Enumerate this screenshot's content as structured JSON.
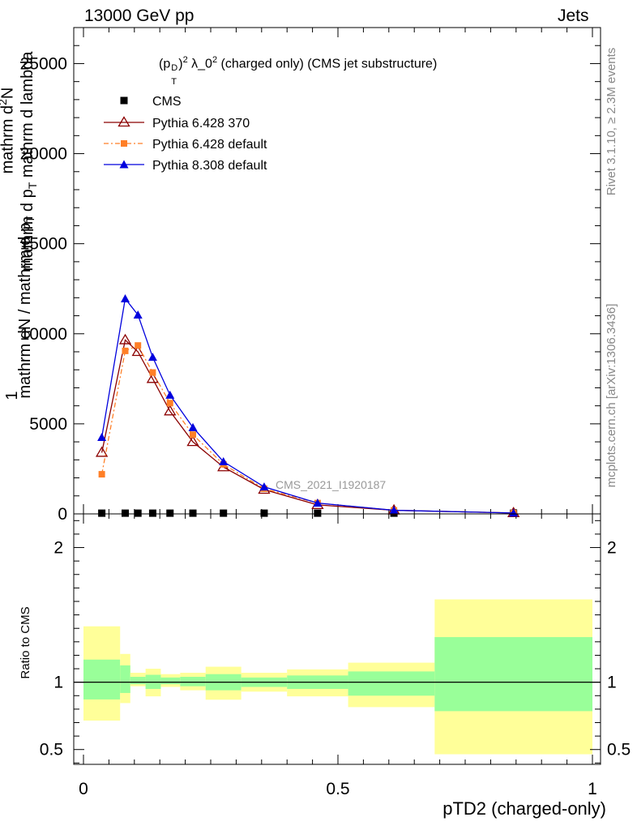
{
  "header": {
    "energy": "13000 GeV pp",
    "process": "Jets"
  },
  "side_labels": {
    "rivet": "Rivet 3.1.10, ≥ 2.3M events",
    "mcplots": "mcplots.cern.ch [arXiv:1306.3436]"
  },
  "colors": {
    "cms": "#000000",
    "pythia6_370": "#8b0000",
    "pythia6_default": "#ff7f27",
    "pythia8": "#0000dd",
    "band_outer": "#ffff99",
    "band_inner": "#99ff99"
  },
  "chart_data": [
    {
      "type": "line",
      "panel": "main",
      "title": "(p_T^D)^2 λ_0^2 (charged only) (CMS jet substructure)",
      "title_parts": {
        "p": "(p",
        "sub": "T",
        "sup_d": "D",
        "close": ")",
        "sup2": "2",
        "lam": " λ_0",
        "sup2b": "2",
        "rest": " (charged only) (CMS jet substructure)"
      },
      "ylabel": "1 / mathrm dN / mathrm d p_T mathrm d p_T mathrm d lambda mathrm d²N",
      "ylabel_parts": {
        "one": "1",
        "denominator": "mathrm dN / mathrm d p",
        "denominator_sub": "T",
        "numerator_line1": "mathrm d p",
        "numerator_line1_sub": "T",
        "numerator_line1_rest": " mathrm d lambda",
        "numerator_line2": "mathrm d",
        "numerator_line2_sup": "2",
        "numerator_line2_rest": "N"
      },
      "ylim": [
        0,
        27000
      ],
      "xlim": [
        0,
        1
      ],
      "y_ticks": [
        0,
        5000,
        10000,
        15000,
        20000,
        25000
      ],
      "y_tick_labels": [
        "0",
        "5000",
        "10000",
        "15000",
        "20000",
        "25000"
      ],
      "watermark": "CMS_2021_I1920187",
      "legend_position": "top-left",
      "series": [
        {
          "name": "CMS",
          "key": "cms",
          "marker": "square",
          "x": [
            0.036,
            0.082,
            0.107,
            0.136,
            0.17,
            0.215,
            0.275,
            0.355,
            0.46,
            0.61,
            0.845
          ],
          "y": [
            40,
            40,
            40,
            40,
            40,
            40,
            40,
            40,
            40,
            40,
            40
          ]
        },
        {
          "name": "Pythia 6.428 370",
          "key": "pythia6_370",
          "marker": "open-triangle",
          "x": [
            0.036,
            0.082,
            0.107,
            0.136,
            0.17,
            0.215,
            0.275,
            0.355,
            0.46,
            0.61,
            0.845
          ],
          "y": [
            3400,
            9650,
            9000,
            7500,
            5700,
            4000,
            2600,
            1350,
            500,
            200,
            50
          ]
        },
        {
          "name": "Pythia 6.428 default",
          "key": "pythia6_default",
          "marker": "filled-square",
          "x": [
            0.036,
            0.082,
            0.107,
            0.136,
            0.17,
            0.215,
            0.275,
            0.355,
            0.46,
            0.61,
            0.845
          ],
          "y": [
            2200,
            9050,
            9350,
            7850,
            6150,
            4400,
            2750,
            1400,
            600,
            200,
            50
          ]
        },
        {
          "name": "Pythia 8.308 default",
          "key": "pythia8",
          "marker": "filled-triangle",
          "x": [
            0.036,
            0.082,
            0.107,
            0.136,
            0.17,
            0.215,
            0.275,
            0.355,
            0.46,
            0.61,
            0.845
          ],
          "y": [
            4250,
            11950,
            11050,
            8700,
            6600,
            4800,
            2900,
            1500,
            600,
            200,
            50
          ]
        }
      ]
    },
    {
      "type": "area",
      "panel": "ratio",
      "ylabel": "Ratio to CMS",
      "xlabel": "pTD2 (charged-only)",
      "ylim": [
        0.39,
        2.25
      ],
      "xlim": [
        0,
        1
      ],
      "x_ticks": [
        0,
        0.5,
        1
      ],
      "x_tick_labels": [
        "0",
        "0.5",
        "1"
      ],
      "y_tick_labels": [
        {
          "value": 0.5,
          "label": "0.5"
        },
        {
          "value": 1,
          "label": "1"
        },
        {
          "value": 2,
          "label": "2"
        }
      ],
      "bins": [
        {
          "x0": 0.0,
          "x1": 0.072,
          "outer": [
            0.715,
            1.415
          ],
          "inner": [
            0.872,
            1.168
          ]
        },
        {
          "x0": 0.072,
          "x1": 0.092,
          "outer": [
            0.845,
            1.21
          ],
          "inner": [
            0.92,
            1.125
          ]
        },
        {
          "x0": 0.092,
          "x1": 0.122,
          "outer": [
            0.97,
            1.07
          ],
          "inner": [
            0.985,
            1.04
          ]
        },
        {
          "x0": 0.122,
          "x1": 0.152,
          "outer": [
            0.895,
            1.1
          ],
          "inner": [
            0.95,
            1.055
          ]
        },
        {
          "x0": 0.152,
          "x1": 0.19,
          "outer": [
            0.965,
            1.06
          ],
          "inner": [
            0.985,
            1.035
          ]
        },
        {
          "x0": 0.19,
          "x1": 0.24,
          "outer": [
            0.94,
            1.07
          ],
          "inner": [
            0.97,
            1.04
          ]
        },
        {
          "x0": 0.24,
          "x1": 0.31,
          "outer": [
            0.87,
            1.115
          ],
          "inner": [
            0.94,
            1.06
          ]
        },
        {
          "x0": 0.31,
          "x1": 0.4,
          "outer": [
            0.93,
            1.07
          ],
          "inner": [
            0.965,
            1.035
          ]
        },
        {
          "x0": 0.4,
          "x1": 0.52,
          "outer": [
            0.895,
            1.095
          ],
          "inner": [
            0.95,
            1.05
          ]
        },
        {
          "x0": 0.52,
          "x1": 0.69,
          "outer": [
            0.815,
            1.145
          ],
          "inner": [
            0.9,
            1.08
          ]
        },
        {
          "x0": 0.69,
          "x1": 1.0,
          "outer": [
            0.465,
            1.615
          ],
          "inner": [
            0.785,
            1.335
          ]
        }
      ]
    }
  ]
}
